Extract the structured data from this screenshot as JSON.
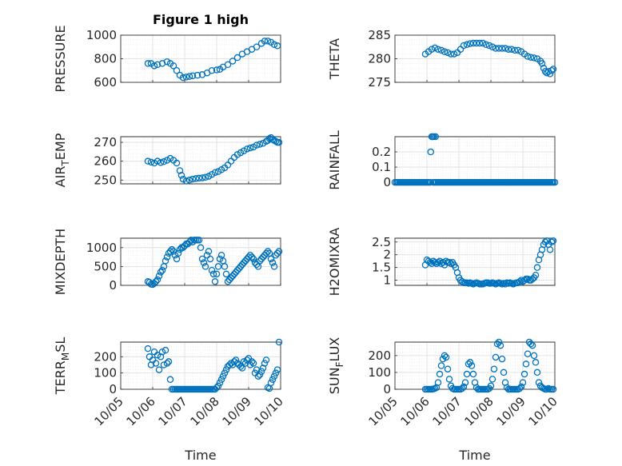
{
  "figure": {
    "title": "Figure 1 high",
    "xlabel": "Time",
    "x_ticks": [
      "10/05",
      "10/06",
      "10/07",
      "10/08",
      "10/09",
      "10/10"
    ]
  },
  "colors": {
    "marker": "#0072BD",
    "axis": "#262626",
    "grid": "#dcdcdc"
  },
  "chart_data": [
    {
      "type": "scatter",
      "ylabel": "PRESSURE",
      "ylabel_sub": "",
      "ylabel_suffix": "",
      "ylim": [
        600,
        1000
      ],
      "yticks": [
        600,
        800,
        1000
      ],
      "xlim": [
        0,
        5
      ],
      "grid": true,
      "x": [
        0.85,
        0.95,
        1.05,
        1.15,
        1.3,
        1.45,
        1.55,
        1.65,
        1.75,
        1.85,
        1.95,
        2.05,
        2.15,
        2.25,
        2.4,
        2.55,
        2.7,
        2.85,
        3.0,
        3.1,
        3.2,
        3.35,
        3.5,
        3.65,
        3.8,
        3.95,
        4.1,
        4.25,
        4.4,
        4.5,
        4.6,
        4.7,
        4.8,
        4.9
      ],
      "y": [
        760,
        760,
        740,
        750,
        760,
        775,
        760,
        740,
        700,
        660,
        640,
        645,
        650,
        655,
        660,
        665,
        680,
        700,
        705,
        710,
        730,
        750,
        780,
        810,
        840,
        860,
        880,
        900,
        930,
        950,
        950,
        940,
        920,
        910
      ]
    },
    {
      "type": "scatter",
      "ylabel": "THETA",
      "ylabel_sub": "",
      "ylabel_suffix": "",
      "ylim": [
        275,
        285
      ],
      "yticks": [
        275,
        280,
        285
      ],
      "xlim": [
        0,
        5
      ],
      "grid": true,
      "x": [
        0.95,
        1.05,
        1.15,
        1.25,
        1.35,
        1.45,
        1.55,
        1.65,
        1.75,
        1.85,
        1.95,
        2.05,
        2.15,
        2.25,
        2.35,
        2.45,
        2.55,
        2.65,
        2.75,
        2.85,
        2.95,
        3.05,
        3.15,
        3.25,
        3.35,
        3.45,
        3.55,
        3.65,
        3.75,
        3.85,
        3.95,
        4.05,
        4.15,
        4.25,
        4.35,
        4.45,
        4.55,
        4.6,
        4.65,
        4.7,
        4.75,
        4.8,
        4.85,
        4.9,
        4.95
      ],
      "y": [
        281,
        281.5,
        282,
        282.3,
        282,
        281.8,
        281.5,
        281.3,
        281,
        281,
        281.3,
        282,
        282.8,
        283,
        283.2,
        283.3,
        283.3,
        283.3,
        283.3,
        283,
        282.8,
        282.5,
        282.2,
        282.2,
        282.2,
        282.2,
        282,
        282,
        281.8,
        281.8,
        281.5,
        281,
        280.5,
        280.3,
        280.2,
        280,
        279.5,
        279,
        278,
        277.3,
        277,
        277.3,
        276.8,
        277.5,
        277.8
      ]
    },
    {
      "type": "scatter",
      "ylabel": "AIR",
      "ylabel_sub": "T",
      "ylabel_suffix": "EMP",
      "ylim": [
        248,
        273
      ],
      "yticks": [
        250,
        260,
        270
      ],
      "xlim": [
        0,
        5
      ],
      "grid": true,
      "x": [
        0.85,
        0.95,
        1.05,
        1.15,
        1.25,
        1.35,
        1.45,
        1.55,
        1.65,
        1.75,
        1.85,
        1.9,
        1.95,
        2.05,
        2.15,
        2.25,
        2.35,
        2.45,
        2.55,
        2.65,
        2.75,
        2.85,
        2.95,
        3.05,
        3.15,
        3.25,
        3.35,
        3.45,
        3.55,
        3.65,
        3.75,
        3.85,
        3.95,
        4.05,
        4.15,
        4.25,
        4.35,
        4.45,
        4.55,
        4.6,
        4.65,
        4.7,
        4.75,
        4.8,
        4.85,
        4.9,
        4.95
      ],
      "y": [
        260,
        259.5,
        259,
        260,
        259.3,
        259.8,
        260.5,
        261.5,
        260.5,
        259,
        255,
        252.5,
        250.5,
        249.5,
        250,
        250.5,
        250.8,
        251,
        251.2,
        251.5,
        252,
        253,
        254,
        254.5,
        255.5,
        256.5,
        258,
        260,
        262,
        263.5,
        264.5,
        265.5,
        266.5,
        267,
        267.5,
        268.5,
        269,
        269.5,
        270.5,
        271,
        272,
        272.5,
        271.5,
        271,
        270.5,
        270,
        270
      ]
    },
    {
      "type": "scatter",
      "ylabel": "RAINFALL",
      "ylabel_sub": "",
      "ylabel_suffix": "",
      "ylim": [
        -0.01,
        0.3
      ],
      "yticks": [
        0,
        0.1,
        0.2
      ],
      "xlim": [
        0,
        5
      ],
      "grid": true,
      "x": [
        0,
        0.05,
        0.1,
        0.15,
        0.2,
        0.25,
        0.3,
        0.35,
        0.4,
        0.45,
        0.5,
        0.55,
        0.6,
        0.65,
        0.7,
        0.75,
        0.8,
        0.85,
        0.9,
        0.95,
        1.0,
        1.05,
        1.1,
        1.12,
        1.15,
        1.18,
        1.2,
        1.22,
        1.25,
        1.27,
        1.3,
        1.35,
        1.4,
        1.45,
        1.5,
        1.55,
        1.6,
        1.65,
        1.7,
        1.75,
        1.8,
        1.85,
        1.9,
        1.95,
        2.0,
        2.05,
        2.1,
        2.15,
        2.2,
        2.25,
        2.3,
        2.35,
        2.4,
        2.45,
        2.5,
        2.55,
        2.6,
        2.65,
        2.7,
        2.75,
        2.8,
        2.85,
        2.9,
        2.95,
        3.0,
        3.05,
        3.1,
        3.15,
        3.2,
        3.25,
        3.3,
        3.35,
        3.4,
        3.45,
        3.5,
        3.55,
        3.6,
        3.65,
        3.7,
        3.75,
        3.8,
        3.85,
        3.9,
        3.95,
        4.0,
        4.05,
        4.1,
        4.15,
        4.2,
        4.25,
        4.3,
        4.35,
        4.4,
        4.45,
        4.5,
        4.55,
        4.6,
        4.65,
        4.7,
        4.75,
        4.8,
        4.85,
        4.9,
        4.95,
        5.0
      ],
      "y": [
        0,
        0,
        0,
        0,
        0,
        0,
        0,
        0,
        0,
        0,
        0,
        0,
        0,
        0,
        0,
        0,
        0,
        0,
        0,
        0,
        0,
        0,
        0,
        0.2,
        0.3,
        0.3,
        0,
        0.3,
        0,
        0.3,
        0,
        0,
        0,
        0,
        0,
        0,
        0,
        0,
        0,
        0,
        0,
        0,
        0,
        0,
        0,
        0,
        0,
        0,
        0,
        0,
        0,
        0,
        0,
        0,
        0,
        0,
        0,
        0,
        0,
        0,
        0,
        0,
        0,
        0,
        0,
        0,
        0,
        0,
        0,
        0,
        0,
        0,
        0,
        0,
        0,
        0,
        0,
        0,
        0,
        0,
        0,
        0,
        0,
        0,
        0,
        0,
        0,
        0,
        0,
        0,
        0,
        0,
        0,
        0,
        0,
        0,
        0,
        0,
        0,
        0,
        0,
        0,
        0,
        0,
        0
      ]
    },
    {
      "type": "scatter",
      "ylabel": "MIXDEPTH",
      "ylabel_sub": "",
      "ylabel_suffix": "",
      "ylim": [
        0,
        1250
      ],
      "yticks": [
        0,
        500,
        1000
      ],
      "xlim": [
        0,
        5
      ],
      "grid": true,
      "x": [
        0.85,
        0.9,
        0.95,
        1.0,
        1.05,
        1.1,
        1.15,
        1.2,
        1.25,
        1.3,
        1.35,
        1.4,
        1.45,
        1.5,
        1.55,
        1.6,
        1.65,
        1.7,
        1.75,
        1.8,
        1.85,
        1.9,
        1.95,
        2.0,
        2.05,
        2.1,
        2.15,
        2.2,
        2.25,
        2.3,
        2.35,
        2.4,
        2.45,
        2.5,
        2.55,
        2.6,
        2.65,
        2.7,
        2.75,
        2.8,
        2.85,
        2.9,
        2.95,
        3.0,
        3.05,
        3.1,
        3.15,
        3.2,
        3.25,
        3.3,
        3.35,
        3.4,
        3.45,
        3.5,
        3.55,
        3.6,
        3.65,
        3.7,
        3.75,
        3.8,
        3.85,
        3.9,
        3.95,
        4.0,
        4.05,
        4.1,
        4.15,
        4.2,
        4.25,
        4.3,
        4.35,
        4.4,
        4.45,
        4.5,
        4.55,
        4.6,
        4.65,
        4.7,
        4.75,
        4.8,
        4.85,
        4.9,
        4.95
      ],
      "y": [
        100,
        80,
        30,
        20,
        50,
        100,
        150,
        250,
        350,
        400,
        500,
        650,
        750,
        850,
        900,
        950,
        900,
        800,
        700,
        850,
        950,
        1000,
        1000,
        1050,
        1100,
        1100,
        1150,
        1200,
        1150,
        1200,
        1200,
        1200,
        1200,
        1000,
        700,
        600,
        500,
        800,
        900,
        700,
        400,
        300,
        100,
        300,
        500,
        700,
        800,
        650,
        500,
        300,
        100,
        150,
        200,
        250,
        300,
        350,
        400,
        450,
        500,
        550,
        600,
        650,
        700,
        750,
        800,
        750,
        700,
        600,
        550,
        500,
        650,
        700,
        750,
        800,
        850,
        900,
        850,
        700,
        600,
        500,
        800,
        850,
        900
      ]
    },
    {
      "type": "scatter",
      "ylabel": "H2OMIXRA",
      "ylabel_sub": "",
      "ylabel_suffix": "",
      "ylim": [
        0.8,
        2.65
      ],
      "yticks": [
        1,
        1.5,
        2,
        2.5
      ],
      "xlim": [
        0,
        5
      ],
      "grid": true,
      "x": [
        0.95,
        1.0,
        1.05,
        1.1,
        1.15,
        1.2,
        1.25,
        1.3,
        1.35,
        1.4,
        1.45,
        1.5,
        1.55,
        1.6,
        1.65,
        1.7,
        1.75,
        1.8,
        1.85,
        1.9,
        1.95,
        2.0,
        2.05,
        2.1,
        2.15,
        2.2,
        2.25,
        2.3,
        2.35,
        2.4,
        2.45,
        2.5,
        2.55,
        2.6,
        2.65,
        2.7,
        2.75,
        2.8,
        2.85,
        2.9,
        2.95,
        3.0,
        3.05,
        3.1,
        3.15,
        3.2,
        3.25,
        3.3,
        3.35,
        3.4,
        3.45,
        3.5,
        3.55,
        3.6,
        3.65,
        3.7,
        3.75,
        3.8,
        3.85,
        3.9,
        3.95,
        4.0,
        4.05,
        4.1,
        4.15,
        4.2,
        4.25,
        4.3,
        4.35,
        4.4,
        4.45,
        4.5,
        4.55,
        4.6,
        4.65,
        4.7,
        4.75,
        4.8,
        4.85,
        4.9,
        4.95
      ],
      "y": [
        1.6,
        1.8,
        1.75,
        1.7,
        1.65,
        1.75,
        1.7,
        1.65,
        1.7,
        1.75,
        1.65,
        1.7,
        1.6,
        1.75,
        1.7,
        1.7,
        1.65,
        1.7,
        1.6,
        1.5,
        1.3,
        1.1,
        1.0,
        0.95,
        0.9,
        0.9,
        0.9,
        0.88,
        0.9,
        0.88,
        0.85,
        0.88,
        0.9,
        0.88,
        0.85,
        0.85,
        0.85,
        0.88,
        0.9,
        0.9,
        0.88,
        0.88,
        0.9,
        0.88,
        0.85,
        0.88,
        0.9,
        0.88,
        0.85,
        0.88,
        0.85,
        0.9,
        0.88,
        0.9,
        0.88,
        0.85,
        0.88,
        0.9,
        0.9,
        0.95,
        1.0,
        0.95,
        1.0,
        1.05,
        1.05,
        1.0,
        1.0,
        1.05,
        1.1,
        1.2,
        1.5,
        1.8,
        2.0,
        2.2,
        2.4,
        2.5,
        2.55,
        2.4,
        2.2,
        2.5,
        2.55
      ]
    },
    {
      "type": "scatter",
      "ylabel": "TERR",
      "ylabel_sub": "M",
      "ylabel_suffix": "SL",
      "ylim": [
        0,
        290
      ],
      "yticks": [
        0,
        100,
        200
      ],
      "xlim": [
        0,
        5
      ],
      "grid": true,
      "x": [
        0.85,
        0.9,
        0.95,
        1.0,
        1.05,
        1.1,
        1.15,
        1.2,
        1.25,
        1.3,
        1.35,
        1.4,
        1.45,
        1.5,
        1.55,
        1.6,
        1.65,
        1.7,
        1.75,
        1.8,
        1.85,
        1.9,
        1.95,
        2.0,
        2.05,
        2.1,
        2.15,
        2.2,
        2.25,
        2.3,
        2.35,
        2.4,
        2.45,
        2.5,
        2.55,
        2.6,
        2.65,
        2.7,
        2.75,
        2.8,
        2.85,
        2.9,
        2.95,
        3.0,
        3.05,
        3.1,
        3.15,
        3.2,
        3.25,
        3.3,
        3.35,
        3.4,
        3.45,
        3.5,
        3.55,
        3.6,
        3.65,
        3.7,
        3.75,
        3.8,
        3.85,
        3.9,
        3.95,
        4.0,
        4.05,
        4.1,
        4.15,
        4.2,
        4.25,
        4.3,
        4.35,
        4.4,
        4.45,
        4.5,
        4.55,
        4.6,
        4.65,
        4.7,
        4.75,
        4.8,
        4.85,
        4.9,
        4.95
      ],
      "y": [
        250,
        200,
        150,
        180,
        230,
        160,
        210,
        120,
        200,
        230,
        150,
        240,
        160,
        170,
        60,
        0,
        0,
        0,
        0,
        0,
        0,
        0,
        0,
        0,
        0,
        0,
        0,
        0,
        0,
        0,
        0,
        0,
        0,
        0,
        0,
        0,
        0,
        0,
        0,
        0,
        0,
        0,
        0,
        10,
        20,
        40,
        60,
        80,
        100,
        120,
        140,
        150,
        160,
        150,
        170,
        180,
        160,
        150,
        140,
        130,
        170,
        160,
        180,
        190,
        150,
        170,
        160,
        100,
        120,
        80,
        90,
        110,
        130,
        160,
        180,
        10,
        5,
        40,
        60,
        80,
        100,
        120,
        290
      ]
    },
    {
      "type": "scatter",
      "ylabel": "SUN",
      "ylabel_sub": "F",
      "ylabel_suffix": "LUX",
      "ylim": [
        0,
        280
      ],
      "yticks": [
        0,
        100,
        200
      ],
      "xlim": [
        0,
        5
      ],
      "grid": true,
      "x": [
        0.95,
        1.0,
        1.05,
        1.1,
        1.15,
        1.2,
        1.25,
        1.3,
        1.35,
        1.4,
        1.45,
        1.5,
        1.55,
        1.6,
        1.65,
        1.7,
        1.75,
        1.8,
        1.85,
        1.9,
        1.95,
        2.0,
        2.05,
        2.1,
        2.15,
        2.2,
        2.25,
        2.3,
        2.35,
        2.4,
        2.45,
        2.5,
        2.55,
        2.6,
        2.65,
        2.7,
        2.75,
        2.8,
        2.85,
        2.9,
        2.95,
        3.0,
        3.05,
        3.1,
        3.15,
        3.2,
        3.25,
        3.3,
        3.35,
        3.4,
        3.45,
        3.5,
        3.55,
        3.6,
        3.65,
        3.7,
        3.75,
        3.8,
        3.85,
        3.9,
        3.95,
        4.0,
        4.05,
        4.1,
        4.15,
        4.2,
        4.25,
        4.3,
        4.35,
        4.4,
        4.45,
        4.5,
        4.55,
        4.6,
        4.65,
        4.7,
        4.75,
        4.8,
        4.85,
        4.9,
        4.95
      ],
      "y": [
        0,
        0,
        0,
        0,
        0,
        2,
        5,
        10,
        40,
        90,
        140,
        180,
        200,
        190,
        120,
        60,
        20,
        5,
        0,
        0,
        0,
        0,
        0,
        5,
        15,
        40,
        90,
        150,
        160,
        140,
        90,
        40,
        10,
        0,
        0,
        0,
        0,
        0,
        0,
        0,
        5,
        20,
        60,
        120,
        190,
        270,
        280,
        260,
        180,
        100,
        40,
        10,
        0,
        0,
        0,
        0,
        0,
        0,
        0,
        5,
        15,
        40,
        90,
        150,
        210,
        280,
        270,
        260,
        200,
        160,
        100,
        40,
        20,
        10,
        5,
        0,
        0,
        5,
        0,
        0,
        0
      ]
    }
  ]
}
